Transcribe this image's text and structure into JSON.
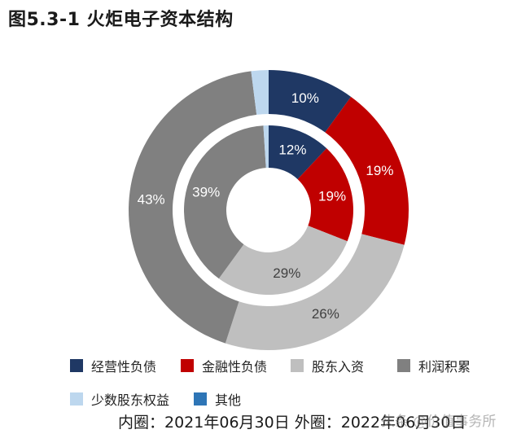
{
  "title": "图5.3-1 火炬电子资本结构",
  "chart_data": {
    "type": "pie",
    "categories": [
      "经营性负债",
      "金融性负债",
      "股东入资",
      "利润积累",
      "少数股东权益",
      "其他"
    ],
    "series": [
      {
        "name": "外圈",
        "values": [
          10,
          19,
          26,
          43,
          2,
          0
        ],
        "labels": [
          "10%",
          "19%",
          "26%",
          "43%",
          "",
          ""
        ]
      },
      {
        "name": "内圈",
        "values": [
          12,
          19,
          29,
          39,
          1,
          0
        ],
        "labels": [
          "12%",
          "19%",
          "29%",
          "39%",
          "",
          ""
        ]
      }
    ],
    "colors": [
      "#1f3864",
      "#c00000",
      "#bfbfbf",
      "#808080",
      "#bdd7ee",
      "#2e75b6"
    ],
    "label_colors": [
      "#ffffff",
      "#ffffff",
      "#404040",
      "#ffffff",
      "#404040",
      "#404040"
    ],
    "legend_position": "bottom"
  },
  "caption": "内圈：2021年06月30日 外圈：2022年06月30日",
  "watermark": "头条 @价值事务所"
}
